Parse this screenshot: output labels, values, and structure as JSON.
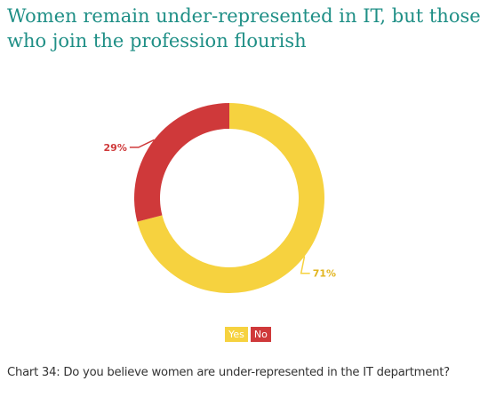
{
  "page_title": {
    "line1": "Women remain under-represented in IT, but those",
    "line2": "who join the profession flourish"
  },
  "chart_data": {
    "type": "pie",
    "donut": true,
    "title": "",
    "categories": [
      "Yes",
      "No"
    ],
    "values": [
      71,
      29
    ],
    "value_labels": [
      "71%",
      "29%"
    ],
    "colors": [
      "#f6d23f",
      "#cf393a"
    ],
    "legend": {
      "placement": "bottom-center",
      "entries": [
        "Yes",
        "No"
      ]
    }
  },
  "caption": "Chart 34: Do you believe women are under-represented in the IT department?"
}
